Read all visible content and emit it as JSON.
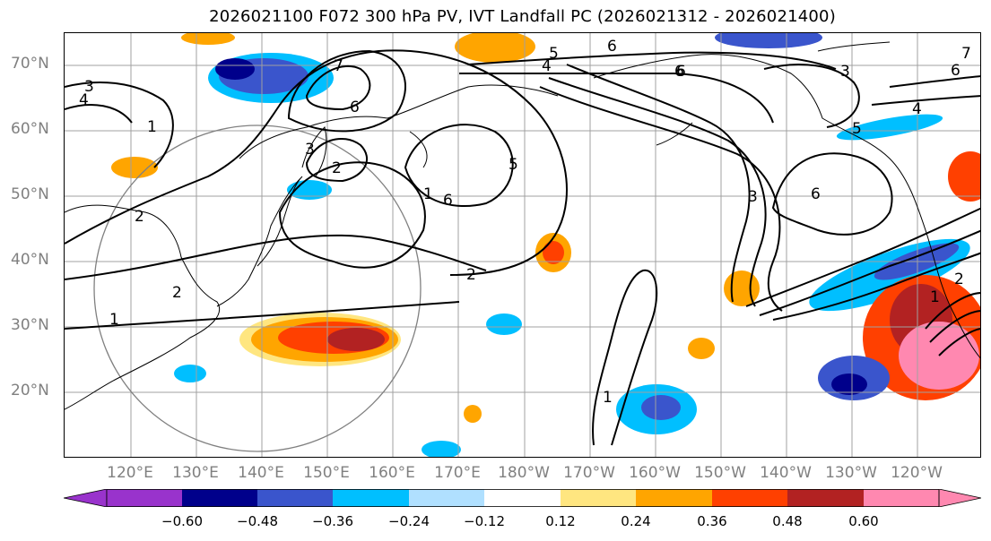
{
  "title": "2026021100 F072 300 hPa PV, IVT Landfall PC (2026021312 - 2026021400)",
  "lat_labels": [
    "70°N",
    "60°N",
    "50°N",
    "40°N",
    "30°N",
    "20°N"
  ],
  "lon_labels": [
    "120°E",
    "130°E",
    "140°E",
    "150°E",
    "160°E",
    "170°E",
    "180°W",
    "170°W",
    "160°W",
    "150°W",
    "140°W",
    "130°W",
    "120°W"
  ],
  "contour_labels": [
    "5",
    "6",
    "4",
    "6",
    "3",
    "4",
    "7",
    "6",
    "1",
    "3",
    "2",
    "5",
    "1",
    "6",
    "2",
    "2",
    "2",
    "1",
    "6",
    "3",
    "6",
    "5",
    "4",
    "7",
    "6",
    "3",
    "2",
    "1",
    "1"
  ],
  "colorbar": {
    "ticks": [
      "−0.60",
      "−0.48",
      "−0.36",
      "−0.24",
      "−0.12",
      "0.12",
      "0.24",
      "0.36",
      "0.48",
      "0.60"
    ],
    "colors": [
      "#9933cc",
      "#00008b",
      "#3a55cc",
      "#00bfff",
      "#b0e0ff",
      "#ffffff",
      "#ffe680",
      "#ffa500",
      "#ff4000",
      "#b22222",
      "#ff88b0"
    ]
  }
}
